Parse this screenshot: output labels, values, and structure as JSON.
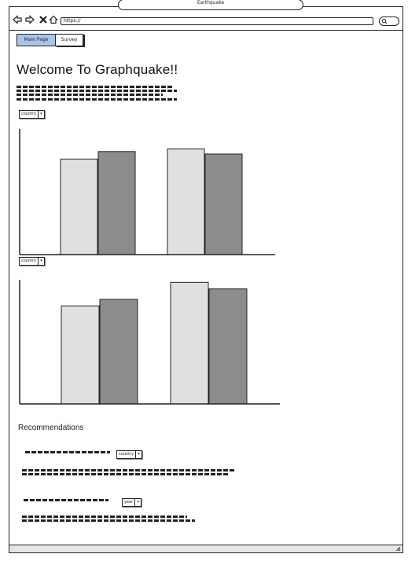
{
  "window": {
    "title": "Earthquake"
  },
  "url_bar": {
    "value": "https://"
  },
  "tabs": [
    {
      "label": "Main Page",
      "active": true
    },
    {
      "label": "Survey",
      "active": false
    }
  ],
  "page": {
    "title": "Welcome To Graphquake!!"
  },
  "dropdowns": {
    "chart1_filter": "country",
    "chart2_filter": "country",
    "rec1_filter": "country",
    "rec2_filter": "year"
  },
  "recommendations": {
    "heading": "Recommendations"
  },
  "colors": {
    "bar_light": "#e0e0e0",
    "bar_dark": "#8c8c8c",
    "active_tab": "#a9c4ee"
  },
  "chart_data": [
    {
      "type": "bar",
      "categories": [
        "",
        ""
      ],
      "series": [
        {
          "values": [
            76,
            84
          ]
        },
        {
          "values": [
            82,
            80
          ]
        }
      ],
      "ylim": [
        0,
        100
      ],
      "xlabel": "",
      "ylabel": "",
      "grid": false
    },
    {
      "type": "bar",
      "categories": [
        "",
        ""
      ],
      "series": [
        {
          "values": [
            75,
            93
          ]
        },
        {
          "values": [
            80,
            88
          ]
        }
      ],
      "ylim": [
        0,
        95
      ],
      "xlabel": "",
      "ylabel": "",
      "grid": false
    }
  ]
}
